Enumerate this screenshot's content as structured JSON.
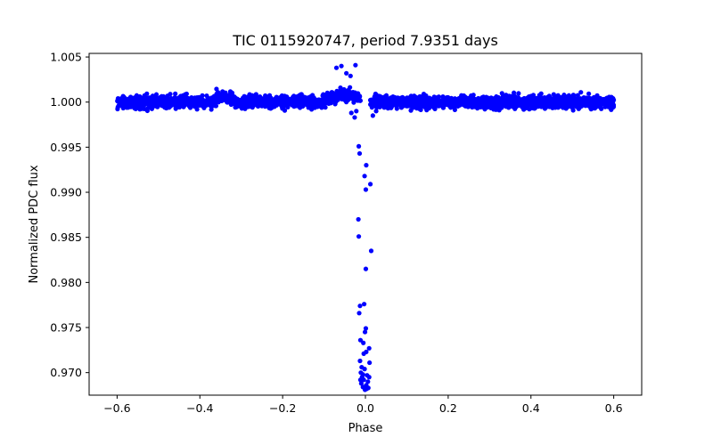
{
  "chart_data": {
    "type": "scatter",
    "title": "TIC 0115920747, period 7.9351 days",
    "xlabel": "Phase",
    "ylabel": "Normalized PDC flux",
    "xlim": [
      -0.6676,
      0.6676
    ],
    "ylim": [
      0.9675,
      1.0054
    ],
    "xticks": [
      -0.6,
      -0.4,
      -0.2,
      0.0,
      0.2,
      0.4,
      0.6
    ],
    "xtick_labels": [
      "−0.6",
      "−0.4",
      "−0.2",
      "0.0",
      "0.2",
      "0.4",
      "0.6"
    ],
    "yticks": [
      0.97,
      0.975,
      0.98,
      0.985,
      0.99,
      0.995,
      1.0,
      1.005
    ],
    "ytick_labels": [
      "0.970",
      "0.975",
      "0.980",
      "0.985",
      "0.990",
      "0.995",
      "1.000",
      "1.005"
    ],
    "grid": false,
    "marker_color": "#0000ff",
    "series": [
      {
        "name": "flux",
        "baseline": {
          "x_range": [
            -0.6,
            0.6
          ],
          "center": 1.0,
          "scatter_amplitude": 0.0012,
          "approx_count": 3000
        },
        "transit_points": [
          {
            "x": -0.016,
            "y": 0.9951
          },
          {
            "x": -0.014,
            "y": 0.9943
          },
          {
            "x": 0.002,
            "y": 0.993
          },
          {
            "x": -0.002,
            "y": 0.9918
          },
          {
            "x": 0.012,
            "y": 0.9909
          },
          {
            "x": 0.001,
            "y": 0.9903
          },
          {
            "x": -0.017,
            "y": 0.987
          },
          {
            "x": -0.016,
            "y": 0.9851
          },
          {
            "x": 0.014,
            "y": 0.9835
          },
          {
            "x": 0.001,
            "y": 0.9815
          },
          {
            "x": -0.013,
            "y": 0.9774
          },
          {
            "x": -0.003,
            "y": 0.9776
          },
          {
            "x": -0.015,
            "y": 0.9766
          },
          {
            "x": 0.001,
            "y": 0.9749
          },
          {
            "x": -0.001,
            "y": 0.9745
          },
          {
            "x": -0.012,
            "y": 0.9736
          },
          {
            "x": -0.005,
            "y": 0.9733
          },
          {
            "x": 0.009,
            "y": 0.9727
          },
          {
            "x": 0.002,
            "y": 0.9723
          },
          {
            "x": -0.004,
            "y": 0.9721
          },
          {
            "x": -0.013,
            "y": 0.9713
          },
          {
            "x": 0.01,
            "y": 0.9711
          },
          {
            "x": -0.009,
            "y": 0.9706
          },
          {
            "x": -0.002,
            "y": 0.9704
          },
          {
            "x": -0.011,
            "y": 0.97
          },
          {
            "x": -0.006,
            "y": 0.9698
          },
          {
            "x": 0.004,
            "y": 0.9697
          },
          {
            "x": -0.008,
            "y": 0.9695
          },
          {
            "x": 0.009,
            "y": 0.9695
          },
          {
            "x": -0.004,
            "y": 0.9692
          },
          {
            "x": 0.006,
            "y": 0.969
          },
          {
            "x": -0.01,
            "y": 0.9688
          },
          {
            "x": 0.002,
            "y": 0.9686
          },
          {
            "x": -0.006,
            "y": 0.9684
          },
          {
            "x": 0.003,
            "y": 0.9682
          },
          {
            "x": -0.001,
            "y": 0.9681
          },
          {
            "x": 0.007,
            "y": 0.9683
          },
          {
            "x": -0.012,
            "y": 0.9692
          }
        ],
        "ingress_egress_points": [
          {
            "x": -0.034,
            "y": 0.9988
          },
          {
            "x": -0.026,
            "y": 0.9983
          },
          {
            "x": -0.022,
            "y": 0.999
          },
          {
            "x": 0.018,
            "y": 0.9985
          },
          {
            "x": 0.026,
            "y": 0.999
          },
          {
            "x": -0.07,
            "y": 1.0038
          },
          {
            "x": -0.058,
            "y": 1.004
          },
          {
            "x": -0.024,
            "y": 1.0041
          },
          {
            "x": -0.046,
            "y": 1.0032
          },
          {
            "x": -0.036,
            "y": 1.0029
          }
        ]
      }
    ]
  }
}
